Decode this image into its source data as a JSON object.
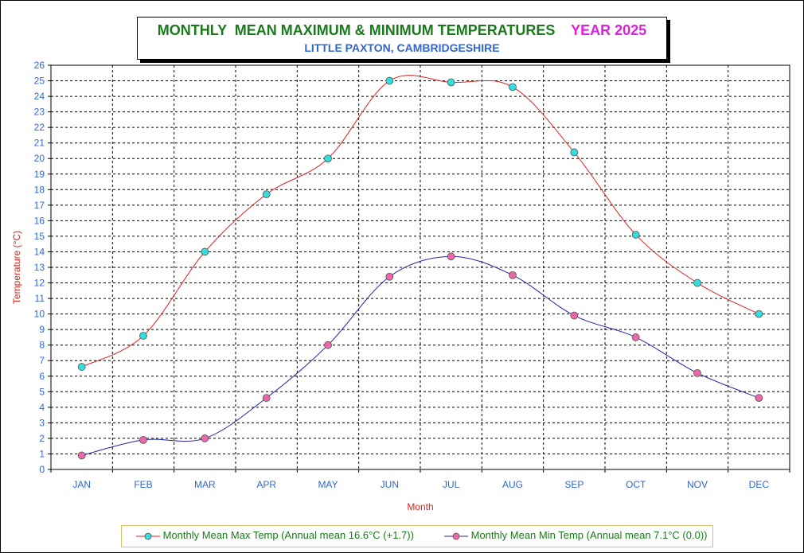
{
  "chart_data": {
    "type": "line",
    "title": "MONTHLY  MEAN MAXIMUM & MINIMUM TEMPERATURES",
    "title_year": "YEAR 2025",
    "subtitle": "LITTLE PAXTON, CAMBRIDGESHIRE",
    "xlabel": "Month",
    "ylabel": "Temperature (°C)",
    "ylim": [
      0,
      26
    ],
    "yticks": [
      0,
      1,
      2,
      3,
      4,
      5,
      6,
      7,
      8,
      9,
      10,
      11,
      12,
      13,
      14,
      15,
      16,
      17,
      18,
      19,
      20,
      21,
      22,
      23,
      24,
      25,
      26
    ],
    "categories": [
      "JAN",
      "FEB",
      "MAR",
      "APR",
      "MAY",
      "JUN",
      "JUL",
      "AUG",
      "SEP",
      "OCT",
      "NOV",
      "DEC"
    ],
    "grid": true,
    "legend_position": "bottom",
    "series": [
      {
        "name": "Monthly Mean Max Temp (Annual mean 16.6°C (+1.7))",
        "line_color": "#dd2222",
        "marker_color": "#33dddd",
        "values": [
          6.6,
          8.6,
          14.0,
          17.7,
          20.0,
          25.0,
          24.9,
          24.6,
          20.4,
          15.1,
          12.0,
          10.0
        ]
      },
      {
        "name": "Monthly Mean Min Temp (Annual mean 7.1°C (0.0))",
        "line_color": "#2222aa",
        "marker_color": "#ee66aa",
        "values": [
          0.9,
          1.9,
          2.0,
          4.6,
          8.0,
          12.4,
          13.7,
          12.5,
          9.9,
          8.5,
          6.2,
          4.6
        ]
      }
    ]
  }
}
